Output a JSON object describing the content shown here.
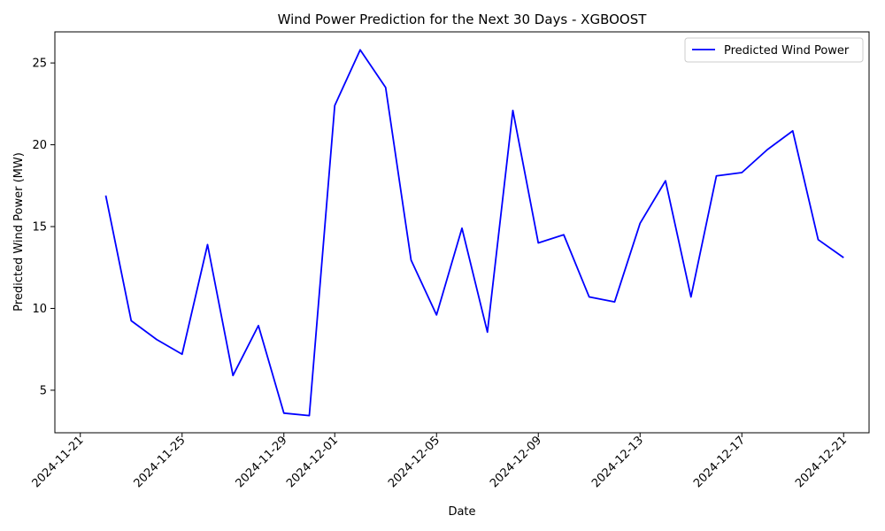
{
  "chart_data": {
    "type": "line",
    "title": "Wind Power Prediction for the Next 30 Days - XGBOOST",
    "xlabel": "Date",
    "ylabel": "Predicted Wind Power (MW)",
    "legend": {
      "placement": "top-right",
      "entries": [
        "Predicted Wind Power"
      ]
    },
    "grid": false,
    "x_range": [
      "2024-11-20",
      "2024-12-22"
    ],
    "ylim": [
      2.4,
      26.9
    ],
    "x_ticks": [
      "2024-11-21",
      "2024-11-25",
      "2024-11-29",
      "2024-12-01",
      "2024-12-05",
      "2024-12-09",
      "2024-12-13",
      "2024-12-17",
      "2024-12-21"
    ],
    "y_ticks": [
      5,
      10,
      15,
      20,
      25
    ],
    "series": [
      {
        "name": "Predicted Wind Power",
        "color": "#0000ff",
        "x": [
          "2024-11-22",
          "2024-11-23",
          "2024-11-24",
          "2024-11-25",
          "2024-11-26",
          "2024-11-27",
          "2024-11-28",
          "2024-11-29",
          "2024-11-30",
          "2024-12-01",
          "2024-12-02",
          "2024-12-03",
          "2024-12-04",
          "2024-12-05",
          "2024-12-06",
          "2024-12-07",
          "2024-12-08",
          "2024-12-09",
          "2024-12-10",
          "2024-12-11",
          "2024-12-12",
          "2024-12-13",
          "2024-12-14",
          "2024-12-15",
          "2024-12-16",
          "2024-12-17",
          "2024-12-18",
          "2024-12-19",
          "2024-12-20",
          "2024-12-21"
        ],
        "values": [
          16.9,
          9.25,
          8.1,
          7.2,
          13.9,
          5.9,
          8.95,
          3.6,
          3.45,
          22.4,
          25.8,
          23.5,
          12.95,
          9.6,
          14.9,
          8.55,
          22.1,
          14.0,
          14.5,
          10.7,
          10.4,
          15.2,
          17.8,
          10.7,
          18.1,
          18.3,
          19.7,
          20.85,
          14.2,
          13.1
        ]
      }
    ]
  }
}
